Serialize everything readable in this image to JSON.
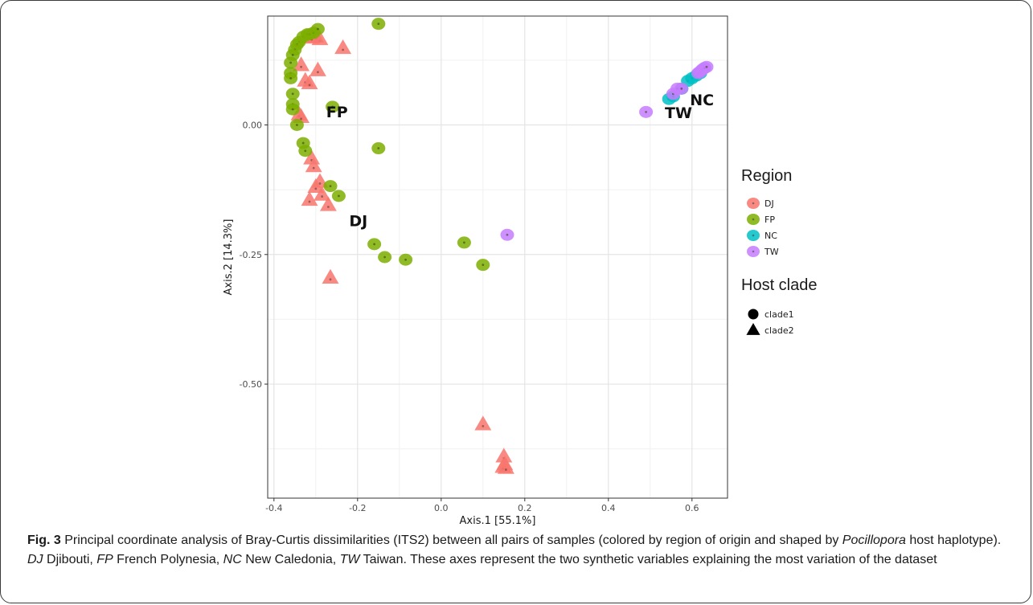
{
  "chart_data": {
    "type": "scatter",
    "xlabel": "Axis.1   [55.1%]",
    "ylabel": "Axis.2   [14.3%]",
    "xlim": [
      -0.415,
      0.685
    ],
    "ylim": [
      -0.72,
      0.21
    ],
    "x_ticks": [
      -0.4,
      -0.2,
      0.0,
      0.2,
      0.4,
      0.6
    ],
    "x_tick_labels": [
      "-0.4",
      "-0.2",
      "0.0",
      "0.2",
      "0.4",
      "0.6"
    ],
    "y_ticks": [
      0.0,
      -0.25,
      -0.5
    ],
    "y_tick_labels": [
      "0.00",
      "-0.25",
      "-0.50"
    ],
    "grid": true,
    "legend_placement": "right",
    "legends": [
      {
        "title": "Region",
        "entries": [
          {
            "label": "DJ",
            "color": "#F8766D"
          },
          {
            "label": "FP",
            "color": "#7CAE00"
          },
          {
            "label": "NC",
            "color": "#00BFC4"
          },
          {
            "label": "TW",
            "color": "#C77CFF"
          }
        ]
      },
      {
        "title": "Host clade",
        "entries": [
          {
            "label": "clade1",
            "shape": "circle"
          },
          {
            "label": "clade2",
            "shape": "triangle"
          }
        ]
      }
    ],
    "annotations": [
      {
        "text": "FP",
        "x": -0.275,
        "y": 0.015
      },
      {
        "text": "DJ",
        "x": -0.22,
        "y": -0.195
      },
      {
        "text": "TW",
        "x": 0.535,
        "y": 0.013
      },
      {
        "text": "NC",
        "x": 0.595,
        "y": 0.038
      }
    ],
    "series": [
      {
        "name": "DJ",
        "color": "#F8766D",
        "shape": "triangle",
        "points": [
          [
            -0.29,
            0.165
          ],
          [
            -0.3,
            0.17
          ],
          [
            -0.31,
            0.168
          ],
          [
            -0.235,
            0.148
          ],
          [
            -0.335,
            0.115
          ],
          [
            -0.295,
            0.105
          ],
          [
            -0.325,
            0.085
          ],
          [
            -0.315,
            0.08
          ],
          [
            -0.34,
            0.02
          ],
          [
            -0.335,
            0.015
          ],
          [
            -0.31,
            -0.065
          ],
          [
            -0.305,
            -0.08
          ],
          [
            -0.29,
            -0.11
          ],
          [
            -0.3,
            -0.12
          ],
          [
            -0.285,
            -0.135
          ],
          [
            -0.315,
            -0.145
          ],
          [
            -0.27,
            -0.155
          ],
          [
            -0.265,
            -0.295
          ],
          [
            0.1,
            -0.578
          ],
          [
            0.15,
            -0.64
          ],
          [
            0.152,
            -0.655
          ],
          [
            0.148,
            -0.66
          ],
          [
            0.155,
            -0.662
          ]
        ]
      },
      {
        "name": "FP",
        "color": "#7CAE00",
        "shape": "circle",
        "points": [
          [
            -0.33,
            0.17
          ],
          [
            -0.32,
            0.175
          ],
          [
            -0.315,
            0.175
          ],
          [
            -0.305,
            0.178
          ],
          [
            -0.295,
            0.185
          ],
          [
            -0.34,
            0.16
          ],
          [
            -0.345,
            0.155
          ],
          [
            -0.35,
            0.145
          ],
          [
            -0.355,
            0.135
          ],
          [
            -0.36,
            0.12
          ],
          [
            -0.36,
            0.1
          ],
          [
            -0.36,
            0.09
          ],
          [
            -0.355,
            0.06
          ],
          [
            -0.355,
            0.04
          ],
          [
            -0.355,
            0.03
          ],
          [
            -0.345,
            0.0
          ],
          [
            -0.15,
            0.195
          ],
          [
            -0.26,
            0.035
          ],
          [
            -0.33,
            -0.035
          ],
          [
            -0.325,
            -0.05
          ],
          [
            -0.15,
            -0.045
          ],
          [
            -0.265,
            -0.118
          ],
          [
            -0.245,
            -0.137
          ],
          [
            -0.16,
            -0.23
          ],
          [
            -0.135,
            -0.255
          ],
          [
            -0.085,
            -0.26
          ],
          [
            0.055,
            -0.227
          ],
          [
            0.1,
            -0.27
          ]
        ]
      },
      {
        "name": "NC",
        "color": "#00BFC4",
        "shape": "circle",
        "points": [
          [
            0.545,
            0.05
          ],
          [
            0.555,
            0.055
          ],
          [
            0.575,
            0.07
          ],
          [
            0.59,
            0.085
          ],
          [
            0.6,
            0.09
          ],
          [
            0.61,
            0.095
          ],
          [
            0.62,
            0.1
          ]
        ]
      },
      {
        "name": "TW",
        "color": "#C77CFF",
        "shape": "circle",
        "points": [
          [
            0.49,
            0.025
          ],
          [
            0.555,
            0.06
          ],
          [
            0.565,
            0.07
          ],
          [
            0.575,
            0.07
          ],
          [
            0.615,
            0.1
          ],
          [
            0.62,
            0.103
          ],
          [
            0.625,
            0.107
          ],
          [
            0.63,
            0.11
          ],
          [
            0.635,
            0.112
          ],
          [
            0.158,
            -0.212
          ]
        ]
      }
    ]
  },
  "caption": {
    "fig_label": "Fig. 3",
    "part1": " Principal coordinate analysis of Bray-Curtis dissimilarities (ITS2) between all pairs of samples (colored by region of origin and shaped by ",
    "genus": "Pocillopora",
    "part2": " host haplotype). ",
    "abbr_dj": "DJ",
    "def_dj": " Djibouti, ",
    "abbr_fp": "FP",
    "def_fp": " French Polynesia, ",
    "abbr_nc": "NC",
    "def_nc": " New Caledonia, ",
    "abbr_tw": "TW",
    "def_tw": " Taiwan. These axes represent the two synthetic variables explaining the most variation of the dataset"
  }
}
